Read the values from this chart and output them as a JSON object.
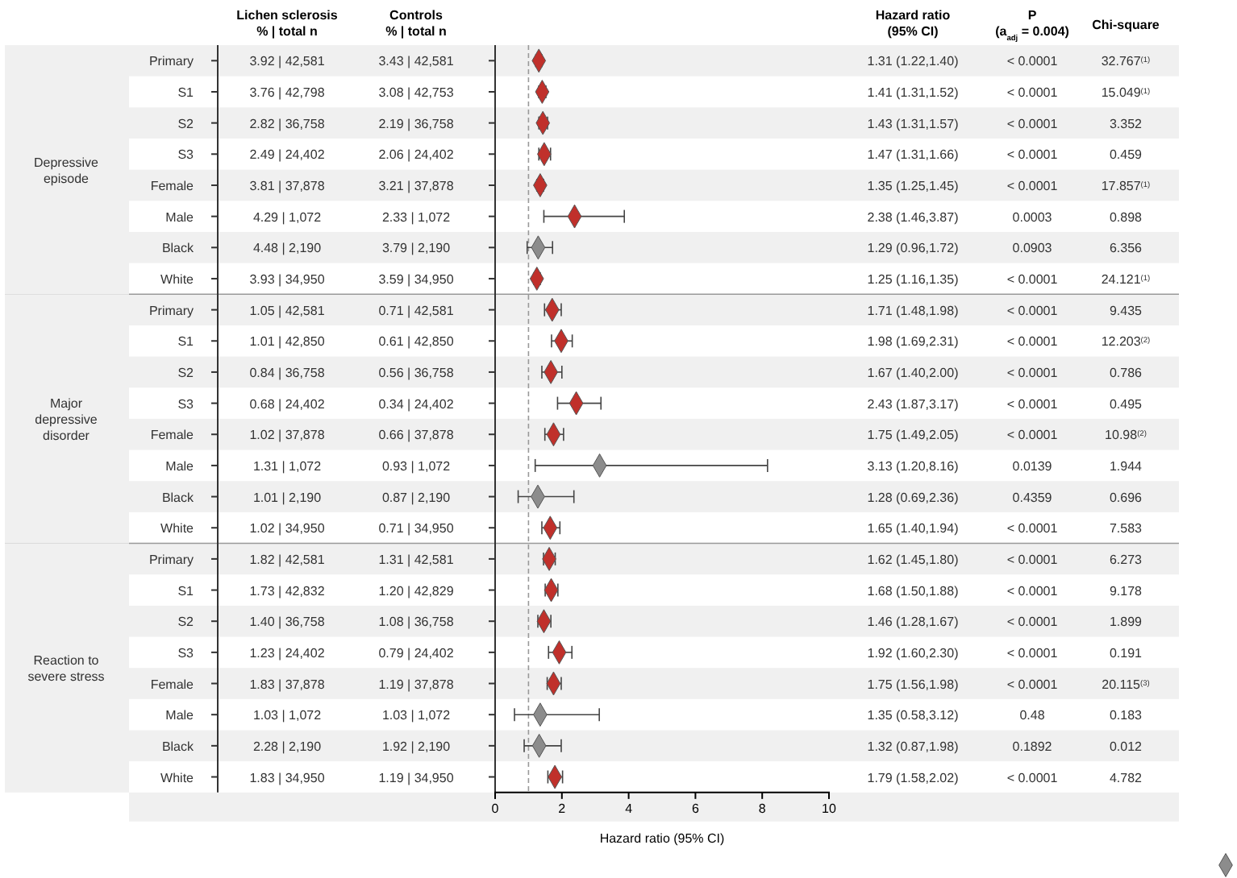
{
  "chart_data": [
    {
      "type": "other",
      "annotations": [
        "Depressive episode",
        "Major depressive disorder",
        "Reaction to severe stress"
      ]
    },
    {
      "type": "other",
      "annotations": [
        "Primary",
        "S1",
        "S2",
        "S3",
        "Female",
        "Male",
        "Black",
        "White",
        "Primary",
        "S1",
        "S2",
        "S3",
        "Female",
        "Male",
        "Black",
        "White",
        "Primary",
        "S1",
        "S2",
        "S3",
        "Female",
        "Male",
        "Black",
        "White"
      ]
    },
    {
      "type": "other",
      "title": "Lichen sclerosis",
      "subtitle": "% | total n",
      "annotations": [
        "3.92 | 42,581",
        "3.76 | 42,798",
        "2.82 | 36,758",
        "2.49 | 24,402",
        "3.81 | 37,878",
        "4.29 | 1,072",
        "4.48 | 2,190",
        "3.93 | 34,950",
        "1.05 | 42,581",
        "1.01 | 42,850",
        "0.84 | 36,758",
        "0.68 | 24,402",
        "1.02 | 37,878",
        "1.31 | 1,072",
        "1.01 | 2,190",
        "1.02 | 34,950",
        "1.82 | 42,581",
        "1.73 | 42,832",
        "1.40 | 36,758",
        "1.23 | 24,402",
        "1.83 | 37,878",
        "1.03 | 1,072",
        "2.28 | 2,190",
        "1.83 | 34,950"
      ]
    },
    {
      "type": "other",
      "title": "Controls",
      "subtitle": "% | total n",
      "annotations": [
        "3.43 | 42,581",
        "3.08 | 42,753",
        "2.19 | 36,758",
        "2.06 | 24,402",
        "3.21 | 37,878",
        "2.33 | 1,072",
        "3.79 | 2,190",
        "3.59 | 34,950",
        "0.71 | 42,581",
        "0.61 | 42,850",
        "0.56 | 36,758",
        "0.34 | 24,402",
        "0.66 | 37,878",
        "0.93 | 1,072",
        "0.87 | 2,190",
        "0.71 | 34,950",
        "1.31 | 42,581",
        "1.20 | 42,829",
        "1.08 | 36,758",
        "0.79 | 24,402",
        "1.19 | 37,878",
        "1.03 | 1,072",
        "1.92 | 2,190",
        "1.19 | 34,950"
      ]
    },
    {
      "type": "scatter",
      "orientation": "horizontal",
      "marker": "diamond",
      "xlabel": "Hazard ratio (95% CI)",
      "categories": [
        null,
        null,
        null,
        null,
        null,
        null,
        null,
        null,
        null,
        null,
        null,
        null,
        null,
        null,
        null,
        null,
        null,
        null,
        null,
        null,
        null,
        null,
        null,
        null
      ],
      "values": [
        1.31,
        1.41,
        1.43,
        1.47,
        1.35,
        2.38,
        1.29,
        1.25,
        1.71,
        1.98,
        1.67,
        2.43,
        1.75,
        3.13,
        1.28,
        1.65,
        1.62,
        1.68,
        1.46,
        1.92,
        1.75,
        1.35,
        1.32,
        1.79
      ],
      "errors": [
        [
          1.22,
          1.4
        ],
        [
          1.31,
          1.52
        ],
        [
          1.31,
          1.57
        ],
        [
          1.31,
          1.66
        ],
        [
          1.25,
          1.45
        ],
        [
          1.46,
          3.87
        ],
        [
          0.96,
          1.72
        ],
        [
          1.16,
          1.35
        ],
        [
          1.48,
          1.98
        ],
        [
          1.69,
          2.31
        ],
        [
          1.4,
          2.0
        ],
        [
          1.87,
          3.17
        ],
        [
          1.49,
          2.05
        ],
        [
          1.2,
          8.16
        ],
        [
          0.69,
          2.36
        ],
        [
          1.4,
          1.94
        ],
        [
          1.45,
          1.8
        ],
        [
          1.5,
          1.88
        ],
        [
          1.28,
          1.67
        ],
        [
          1.6,
          2.3
        ],
        [
          1.56,
          1.98
        ],
        [
          0.58,
          3.12
        ],
        [
          0.87,
          1.98
        ],
        [
          1.58,
          2.02
        ]
      ],
      "colors": [
        "#c0302b",
        "#c0302b",
        "#c0302b",
        "#c0302b",
        "#c0302b",
        "#c0302b",
        "#8c8c8c",
        "#c0302b",
        "#c0302b",
        "#c0302b",
        "#c0302b",
        "#c0302b",
        "#c0302b",
        "#8c8c8c",
        "#8c8c8c",
        "#c0302b",
        "#c0302b",
        "#c0302b",
        "#c0302b",
        "#c0302b",
        "#c0302b",
        "#8c8c8c",
        "#8c8c8c",
        "#c0302b"
      ],
      "xlim": [
        0,
        10
      ],
      "xticks": [
        0,
        2,
        4,
        6,
        8,
        10
      ],
      "ref_lines": [
        {
          "axis": "x",
          "value": 1,
          "color": "#999999",
          "line_style": "dashed"
        }
      ]
    },
    {
      "type": "other",
      "title": "Hazard ratio",
      "subtitle": "(95% CI)",
      "annotations": [
        "1.31 (1.22,1.40)",
        "1.41 (1.31,1.52)",
        "1.43 (1.31,1.57)",
        "1.47 (1.31,1.66)",
        "1.35 (1.25,1.45)",
        "2.38 (1.46,3.87)",
        "1.29 (0.96,1.72)",
        "1.25 (1.16,1.35)",
        "1.71 (1.48,1.98)",
        "1.98 (1.69,2.31)",
        "1.67 (1.40,2.00)",
        "2.43 (1.87,3.17)",
        "1.75 (1.49,2.05)",
        "3.13 (1.20,8.16)",
        "1.28 (0.69,2.36)",
        "1.65 (1.40,1.94)",
        "1.62 (1.45,1.80)",
        "1.68 (1.50,1.88)",
        "1.46 (1.28,1.67)",
        "1.92 (1.60,2.30)",
        "1.75 (1.56,1.98)",
        "1.35 (0.58,3.12)",
        "1.32 (0.87,1.98)",
        "1.79 (1.58,2.02)"
      ]
    },
    {
      "type": "other",
      "title": "P",
      "subtitle": "(a$_{adj}$ = 0.004)",
      "annotations": [
        "< 0.0001",
        "< 0.0001",
        "< 0.0001",
        "< 0.0001",
        "< 0.0001",
        "0.0003",
        "0.0903",
        "< 0.0001",
        "< 0.0001",
        "< 0.0001",
        "< 0.0001",
        "< 0.0001",
        "< 0.0001",
        "0.0139",
        "0.4359",
        "< 0.0001",
        "< 0.0001",
        "< 0.0001",
        "< 0.0001",
        "< 0.0001",
        "< 0.0001",
        "0.48",
        "0.1892",
        "< 0.0001"
      ]
    },
    {
      "type": "other",
      "title": "Chi-square",
      "annotations": [
        "32.767$^{(1)}$",
        "15.049$^{(1)}$",
        "3.352",
        "0.459",
        "17.857$^{(1)}$",
        "0.898",
        "6.356",
        "24.121$^{(1)}$",
        "9.435",
        "12.203$^{(2)}$",
        "0.786",
        "0.495",
        "10.98$^{(2)}$",
        "1.944",
        "0.696",
        "7.583",
        "6.273",
        "9.178",
        "1.899",
        "0.191",
        "20.115$^{(3)}$",
        "0.183",
        "0.012",
        "4.782"
      ]
    }
  ]
}
